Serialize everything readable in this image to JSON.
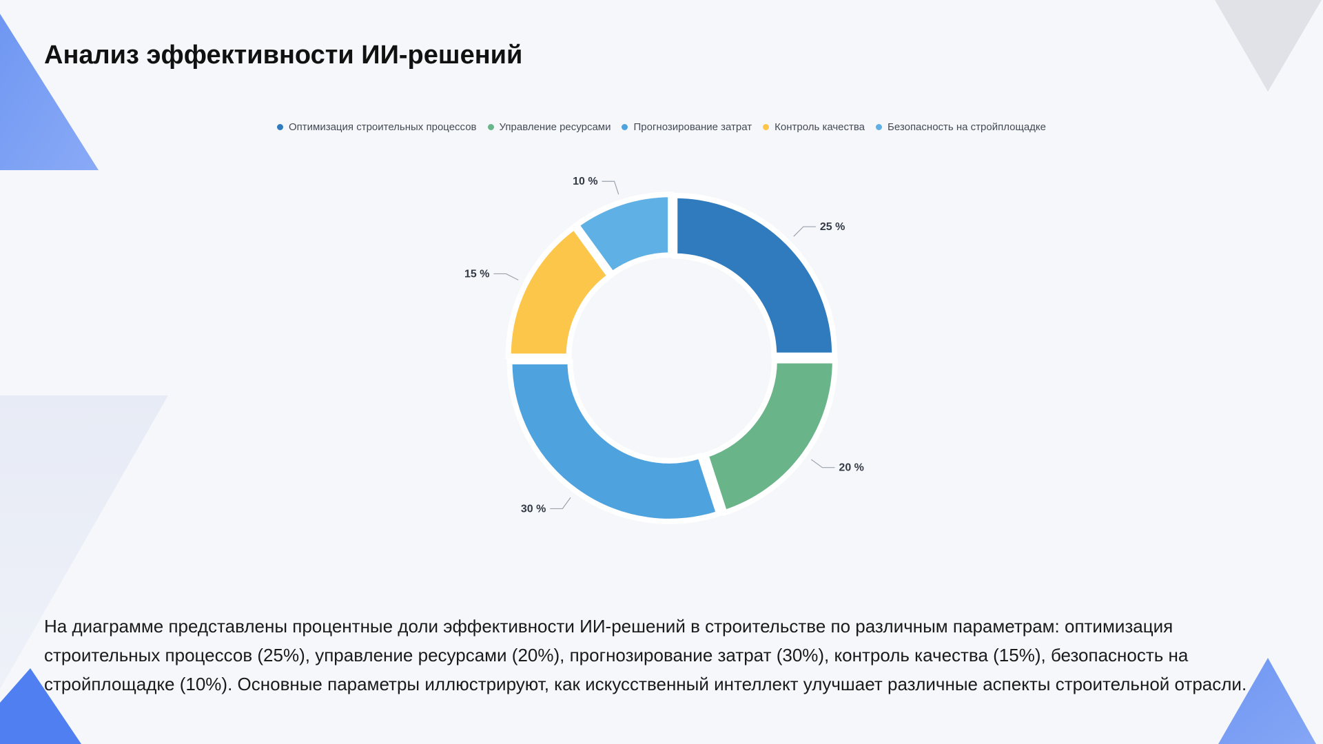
{
  "title": "Анализ эффективности ИИ-решений",
  "description": "На диаграмме представлены процентные доли эффективности ИИ-решений в строительстве по различным параметрам: оптимизация строительных процессов (25%), управление ресурсами (20%), прогнозирование затрат (30%), контроль качества (15%), безопасность на стройплощадке (10%). Основные параметры иллюстрируют, как искусственный интеллект улучшает различные аспекты строительной отрасли.",
  "colors": {
    "background": "#f5f7fb",
    "accent_blue": "#4f7ff0",
    "deco_gray": "#e1e3ea"
  },
  "chart_data": {
    "type": "pie",
    "variant": "donut",
    "legend_position": "top",
    "start_angle_deg": 0,
    "direction": "clockwise",
    "categories": [
      "Оптимизация строительных процессов",
      "Управление ресурсами",
      "Прогнозирование затрат",
      "Контроль качества",
      "Безопасность на стройплощадке"
    ],
    "values": [
      25,
      20,
      30,
      15,
      10
    ],
    "labels": [
      "25 %",
      "20 %",
      "30 %",
      "15 %",
      "10 %"
    ],
    "colors": [
      "#2f7bbd",
      "#6ab48a",
      "#4ea3df",
      "#fcc64a",
      "#5fb0e5"
    ]
  }
}
